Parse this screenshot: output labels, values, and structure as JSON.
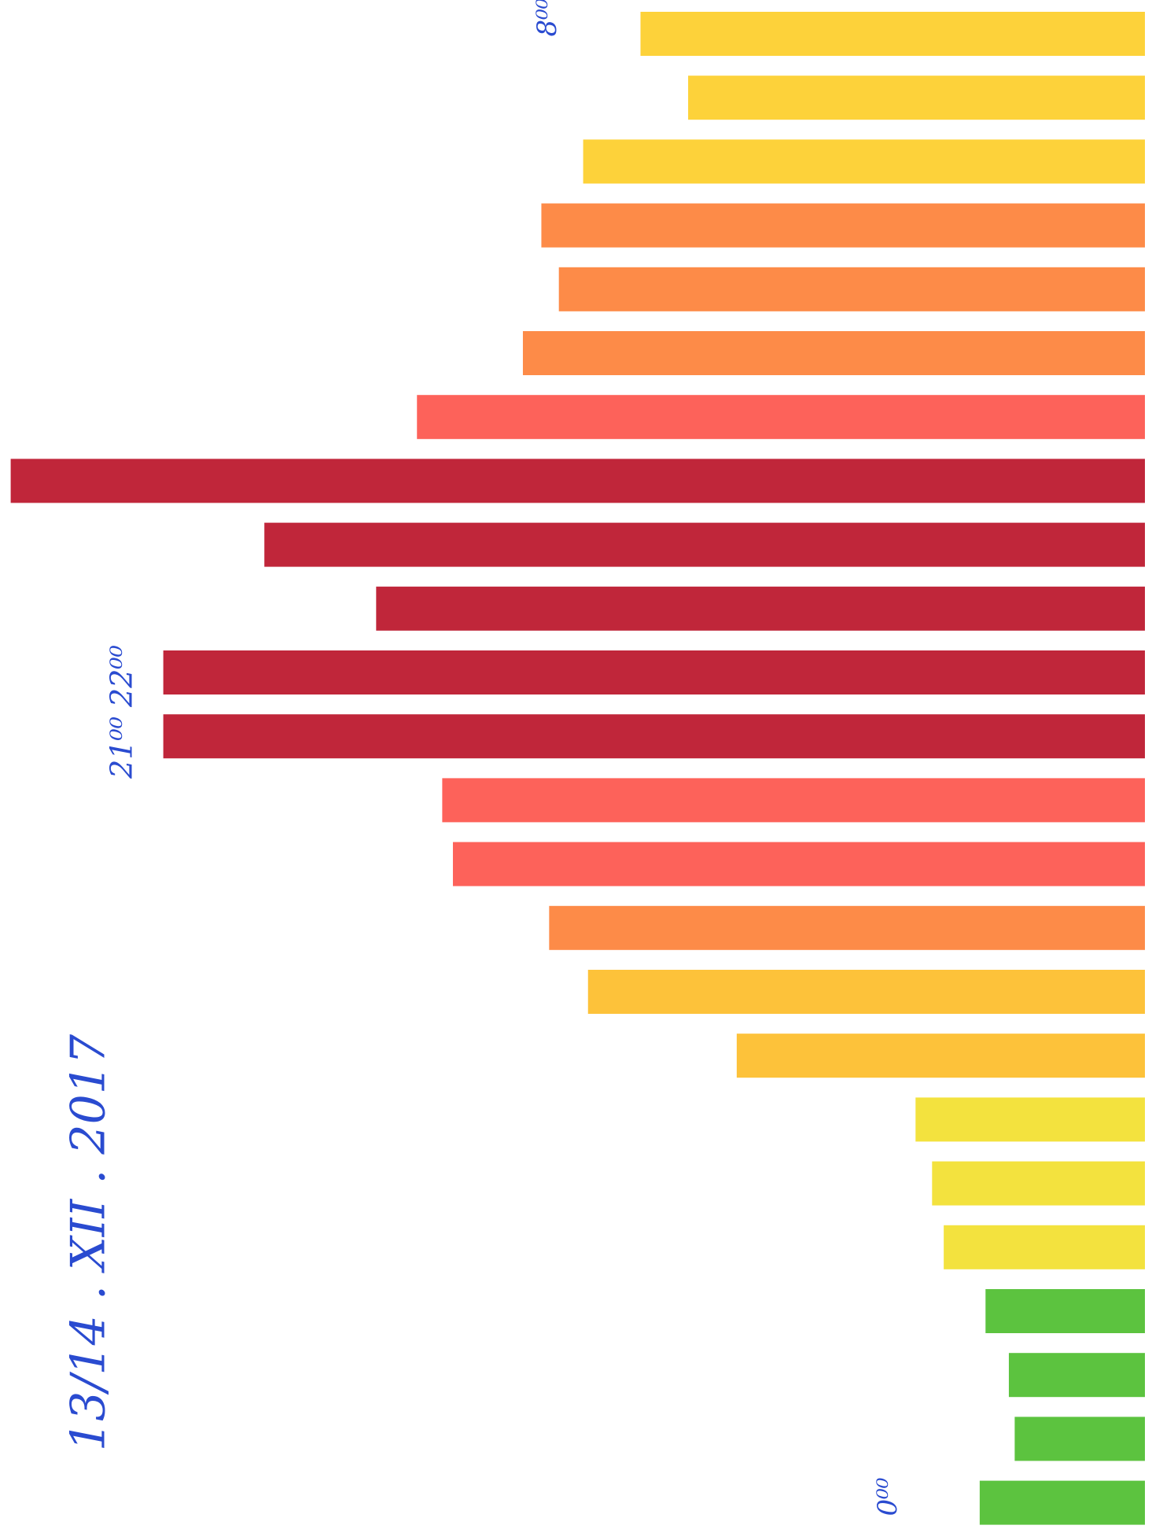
{
  "chart_data": {
    "type": "bar",
    "orientation": "horizontal",
    "categories": [
      null,
      null,
      null,
      null,
      null,
      null,
      null,
      null,
      null,
      null,
      null,
      null,
      null,
      null,
      null,
      null,
      null,
      null,
      null,
      null,
      null,
      null,
      null,
      null
    ],
    "values": [
      519,
      470,
      578,
      621,
      603,
      640,
      749,
      1167,
      906,
      791,
      1010,
      1010,
      723,
      712,
      613,
      573,
      420,
      236,
      219,
      207,
      164,
      140,
      134,
      170
    ],
    "colors": [
      "#fdd23a",
      "#fdd23a",
      "#fdd23a",
      "#fd8b48",
      "#fd8b48",
      "#fd8b48",
      "#fd625a",
      "#c0263a",
      "#c0263a",
      "#c0263a",
      "#c0263a",
      "#c0263a",
      "#fd625a",
      "#fd625a",
      "#fd8b48",
      "#fdc23a",
      "#fdc23a",
      "#f3e23e",
      "#f3e23e",
      "#f3e23e",
      "#5cc33f",
      "#5cc33f",
      "#5cc33f",
      "#5cc33f"
    ],
    "xlim": [
      0,
      1178
    ],
    "annotations": [
      "13/14 . XII . 2017",
      "21⁰⁰ 22⁰⁰",
      "0⁰⁰",
      "8⁰⁰"
    ]
  }
}
